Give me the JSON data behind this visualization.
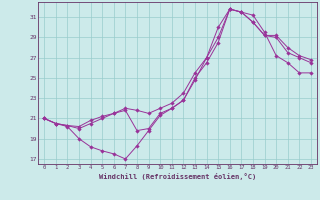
{
  "xlabel": "Windchill (Refroidissement éolien,°C)",
  "bg_color": "#cceaea",
  "line_color": "#993399",
  "grid_color": "#99cccc",
  "axis_color": "#663366",
  "text_color": "#663366",
  "xlim": [
    -0.5,
    23.5
  ],
  "ylim": [
    16.5,
    32.5
  ],
  "xticks": [
    0,
    1,
    2,
    3,
    4,
    5,
    6,
    7,
    8,
    9,
    10,
    11,
    12,
    13,
    14,
    15,
    16,
    17,
    18,
    19,
    20,
    21,
    22,
    23
  ],
  "yticks": [
    17,
    19,
    21,
    23,
    25,
    27,
    29,
    31
  ],
  "line1_x": [
    0,
    1,
    2,
    3,
    4,
    5,
    6,
    7,
    8,
    9,
    10,
    11,
    12,
    13,
    14,
    15,
    16,
    17,
    18,
    19,
    20,
    21,
    22,
    23
  ],
  "line1_y": [
    21.0,
    20.5,
    20.2,
    19.0,
    18.2,
    17.8,
    17.5,
    17.0,
    18.3,
    19.8,
    21.3,
    22.0,
    22.8,
    24.8,
    27.0,
    30.0,
    31.8,
    31.5,
    31.2,
    29.5,
    27.2,
    26.5,
    25.5,
    25.5
  ],
  "line2_x": [
    0,
    1,
    2,
    3,
    4,
    5,
    6,
    7,
    8,
    9,
    10,
    11,
    12,
    13,
    14,
    15,
    16,
    17,
    18,
    19,
    20,
    21,
    22,
    23
  ],
  "line2_y": [
    21.0,
    20.5,
    20.3,
    20.2,
    20.8,
    21.2,
    21.5,
    21.8,
    19.8,
    20.0,
    21.5,
    22.0,
    22.8,
    25.0,
    26.5,
    28.5,
    31.8,
    31.5,
    30.5,
    29.2,
    29.0,
    27.5,
    27.0,
    26.5
  ],
  "line3_x": [
    0,
    1,
    2,
    3,
    4,
    5,
    6,
    7,
    8,
    9,
    10,
    11,
    12,
    13,
    14,
    15,
    16,
    17,
    18,
    19,
    20,
    21,
    22,
    23
  ],
  "line3_y": [
    21.0,
    20.5,
    20.3,
    20.0,
    20.5,
    21.0,
    21.5,
    22.0,
    21.8,
    21.5,
    22.0,
    22.5,
    23.5,
    25.5,
    27.0,
    29.0,
    31.8,
    31.5,
    30.5,
    29.2,
    29.2,
    28.0,
    27.2,
    26.8
  ]
}
